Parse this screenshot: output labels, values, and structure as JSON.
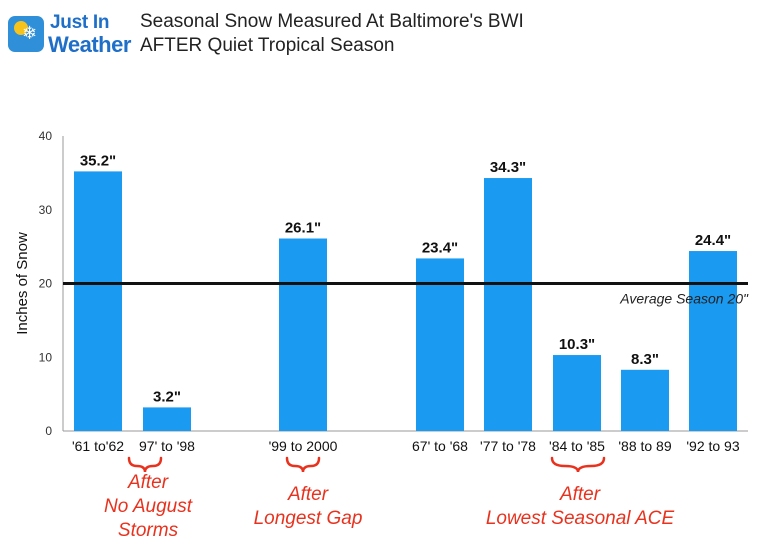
{
  "logo": {
    "line1": "Just In",
    "line2": "Weather"
  },
  "title": {
    "line1": "Seasonal Snow Measured At Baltimore's BWI",
    "line2": "AFTER Quiet Tropical Season"
  },
  "annotations": [
    {
      "line1": "After",
      "line2": "No August",
      "line3": "Storms"
    },
    {
      "line1": "After",
      "line2": "Longest Gap"
    },
    {
      "line1": "After",
      "line2": "Lowest Seasonal ACE"
    }
  ],
  "colors": {
    "bar": "#1a9af1",
    "annotation": "#e8321e",
    "average_line": "#111111",
    "title": "#222222"
  },
  "chart_data": {
    "type": "bar",
    "title": "Seasonal Snow Measured At Baltimore's BWI AFTER Quiet Tropical Season",
    "xlabel": "",
    "ylabel": "Inches of Snow",
    "ylim": [
      0,
      40
    ],
    "yticks": [
      0,
      10,
      20,
      30,
      40
    ],
    "grid": false,
    "categories": [
      "'61 to'62",
      "97' to '98",
      "'99 to 2000",
      "67' to '68",
      "'77 to '78",
      "'84 to '85",
      "'88 to 89",
      "'92 to 93"
    ],
    "values": [
      35.2,
      3.2,
      26.1,
      23.4,
      34.3,
      10.3,
      8.3,
      24.4
    ],
    "data_labels": [
      "35.2\"",
      "3.2\"",
      "26.1\"",
      "23.4\"",
      "34.3\"",
      "10.3\"",
      "8.3\"",
      "24.4\""
    ],
    "reference_line": {
      "value": 20,
      "label": "Average Season 20\""
    },
    "groups": [
      {
        "annotation": "After No August Storms",
        "categories": [
          "'61 to'62",
          "97' to '98"
        ]
      },
      {
        "annotation": "After Longest Gap",
        "categories": [
          "'99 to 2000"
        ]
      },
      {
        "annotation": "After Lowest Seasonal ACE",
        "categories": [
          "67' to '68",
          "'77 to '78",
          "'84 to '85",
          "'88 to 89",
          "'92 to 93"
        ]
      }
    ]
  }
}
